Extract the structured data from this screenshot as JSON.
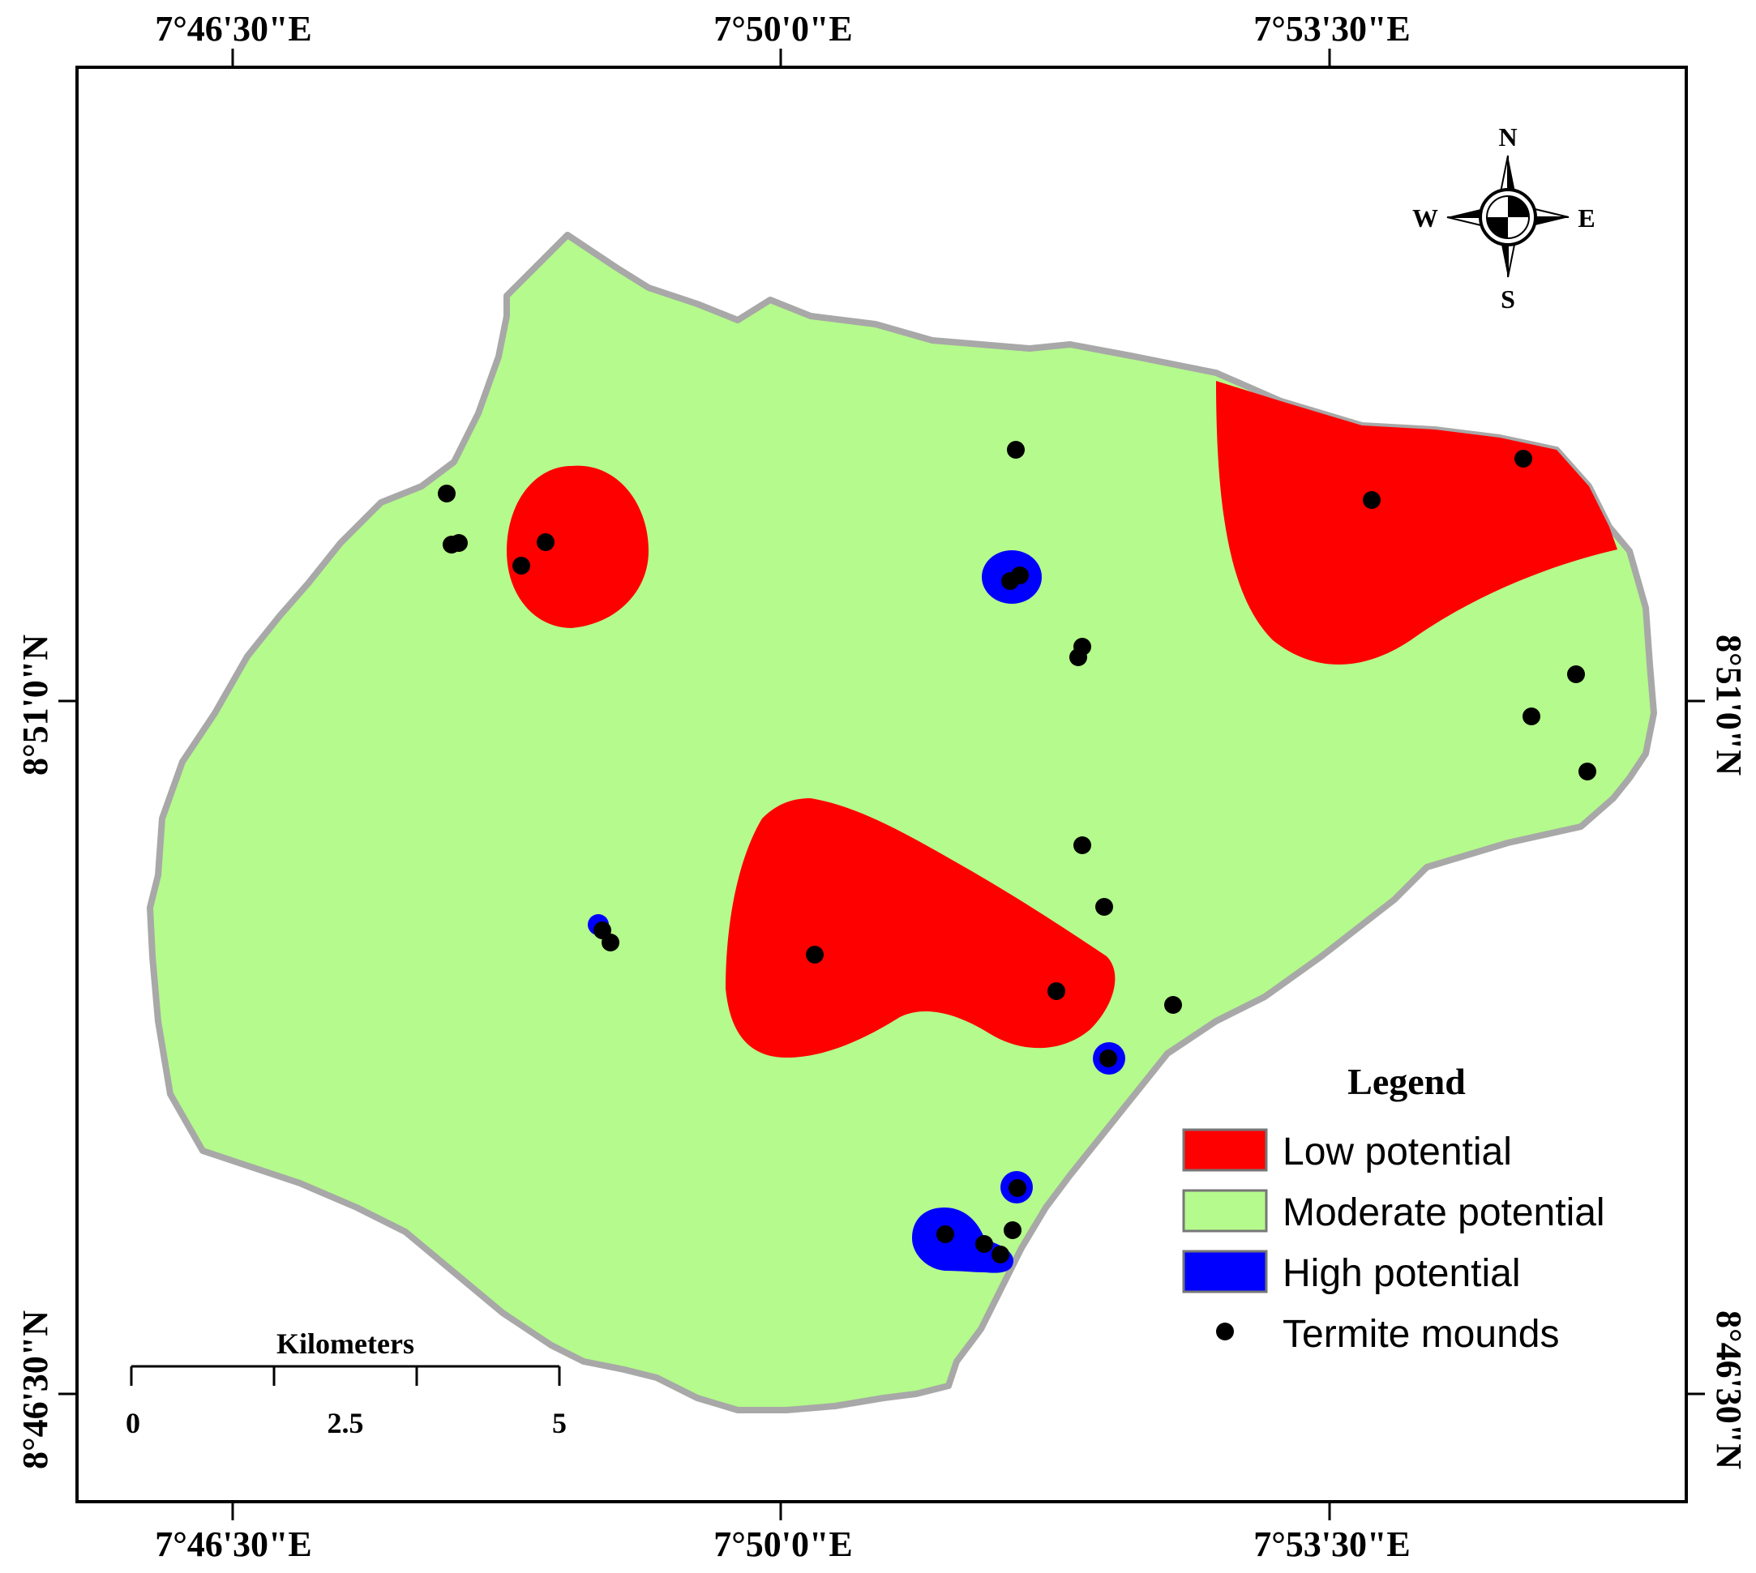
{
  "map": {
    "top_labels": [
      "7°46'30\"E",
      "7°50'0\"E",
      "7°53'30\"E"
    ],
    "bottom_labels": [
      "7°46'30\"E",
      "7°50'0\"E",
      "7°53'30\"E"
    ],
    "left_labels": [
      "8°51'0\"N",
      "8°46'30\"N"
    ],
    "right_labels": [
      "8°51'0\"N",
      "8°46'30\"N"
    ]
  },
  "compass": {
    "n": "N",
    "s": "S",
    "e": "E",
    "w": "W"
  },
  "scale": {
    "title": "Kilometers",
    "ticks": [
      "0",
      "2.5",
      "5"
    ]
  },
  "legend": {
    "title": "Legend",
    "items": [
      {
        "label": "Low potential",
        "color": "#ff0000",
        "kind": "swatch"
      },
      {
        "label": "Moderate potential",
        "color": "#b5fa8c",
        "kind": "swatch"
      },
      {
        "label": "High potential",
        "color": "#0000ff",
        "kind": "swatch"
      },
      {
        "label": "Termite mounds",
        "color": "#000000",
        "kind": "dot"
      }
    ]
  },
  "colors": {
    "low": "#ff0000",
    "moderate": "#b5fa8c",
    "high": "#0000ff",
    "boundary": "#a8a8a8",
    "mound": "#000000"
  }
}
